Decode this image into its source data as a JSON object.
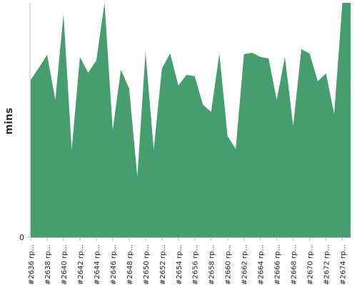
{
  "chart_data": {
    "type": "area",
    "y_label": "mins",
    "color": "#469d6e",
    "categories": [
      "#2636 rp...",
      null,
      "#2638 rp...",
      null,
      "#2640 rp...",
      null,
      "#2642 rp...",
      null,
      "#2644 rp...",
      null,
      "#2646 rp...",
      null,
      "#2648 rp...",
      null,
      "#2650 rp...",
      null,
      "#2652 rp...",
      null,
      "#2654 rp...",
      null,
      "#2656 rp...",
      null,
      "#2658 rp...",
      null,
      "#2660 rp...",
      null,
      "#2662 rp...",
      null,
      "#2664 rp...",
      null,
      "#2666 rp...",
      null,
      "#2668 rp...",
      null,
      "#2670 rp...",
      null,
      "#2672 rp...",
      null,
      "#2674 rp...",
      null
    ],
    "values": [
      221,
      238,
      256,
      193,
      313,
      123,
      253,
      231,
      248,
      329,
      151,
      235,
      209,
      85,
      260,
      123,
      237,
      258,
      213,
      228,
      226,
      186,
      176,
      258,
      142,
      124,
      257,
      259,
      253,
      251,
      193,
      253,
      156,
      264,
      258,
      219,
      230,
      173,
      329,
      329
    ],
    "ylim": [
      0,
      329
    ],
    "yticks": [
      0
    ]
  }
}
